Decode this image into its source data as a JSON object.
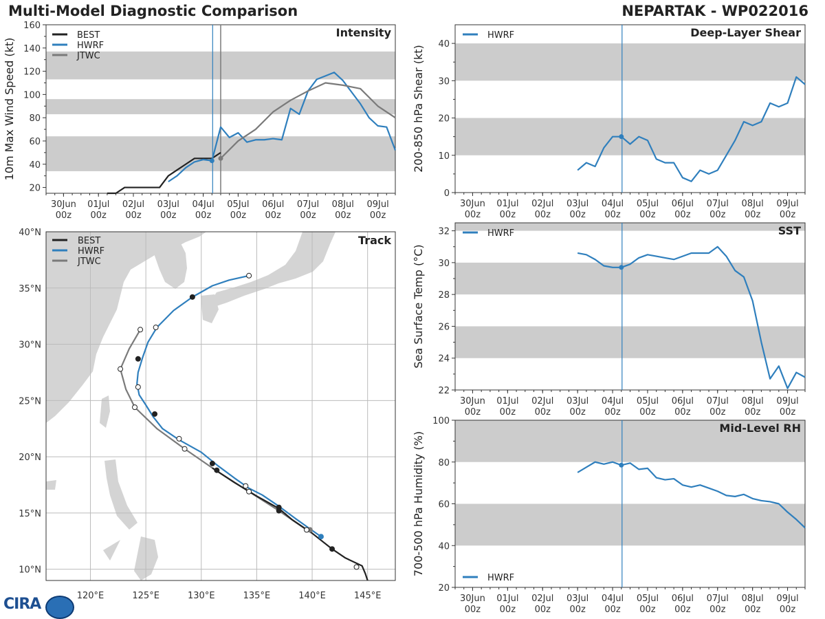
{
  "header": {
    "title": "Multi-Model Diagnostic Comparison",
    "storm": "NEPARTAK - WP022016"
  },
  "logo_text": "CIRA",
  "colors": {
    "best": "#222222",
    "hwrf": "#2f7fbd",
    "jtwc": "#7a7a7a",
    "band": "#cccccc",
    "land": "#d4d4d4",
    "grid": "#bbbbbb"
  },
  "time_axis": {
    "start_day": 29.5,
    "end_day": 39.5,
    "ticks": [
      {
        "day": 30,
        "l1": "30Jun",
        "l2": "00z"
      },
      {
        "day": 31,
        "l1": "01Jul",
        "l2": "00z"
      },
      {
        "day": 32,
        "l1": "02Jul",
        "l2": "00z"
      },
      {
        "day": 33,
        "l1": "03Jul",
        "l2": "00z"
      },
      {
        "day": 34,
        "l1": "04Jul",
        "l2": "00z"
      },
      {
        "day": 35,
        "l1": "05Jul",
        "l2": "00z"
      },
      {
        "day": 36,
        "l1": "06Jul",
        "l2": "00z"
      },
      {
        "day": 37,
        "l1": "07Jul",
        "l2": "00z"
      },
      {
        "day": 38,
        "l1": "08Jul",
        "l2": "00z"
      },
      {
        "day": 39,
        "l1": "09Jul",
        "l2": "00z"
      }
    ],
    "current_day": 34.27,
    "jtwc_day": 34.5
  },
  "chart_data": [
    {
      "type": "line",
      "panel": "intensity",
      "title": "Intensity",
      "ylabel": "10m Max Wind Speed (kt)",
      "ylim": [
        15,
        160
      ],
      "yticks": [
        20,
        40,
        60,
        80,
        100,
        120,
        140,
        160
      ],
      "bands": [
        [
          34,
          64
        ],
        [
          83,
          96
        ],
        [
          113,
          137
        ]
      ],
      "legend": [
        "BEST",
        "HWRF",
        "JTWC"
      ],
      "series": [
        {
          "name": "BEST",
          "x": [
            31.25,
            31.5,
            31.75,
            32.0,
            32.25,
            32.5,
            32.75,
            33.0,
            33.25,
            33.5,
            33.75,
            34.0,
            34.25,
            34.5
          ],
          "y": [
            15,
            15,
            20,
            20,
            20,
            20,
            20,
            30,
            35,
            40,
            45,
            45,
            45,
            50
          ]
        },
        {
          "name": "HWRF",
          "x": [
            33.0,
            33.25,
            33.5,
            33.75,
            34.0,
            34.25,
            34.5,
            34.75,
            35.0,
            35.25,
            35.5,
            35.75,
            36.0,
            36.25,
            36.5,
            36.75,
            37.0,
            37.25,
            37.5,
            37.75,
            38.0,
            38.25,
            38.5,
            38.75,
            39.0,
            39.25,
            39.5
          ],
          "y": [
            25,
            30,
            37,
            42,
            44,
            43,
            72,
            63,
            67,
            59,
            61,
            61,
            62,
            61,
            88,
            83,
            103,
            113,
            116,
            119,
            112,
            102,
            92,
            80,
            73,
            72,
            52
          ]
        },
        {
          "name": "JTWC",
          "x": [
            34.5,
            35.0,
            35.5,
            36.0,
            36.5,
            37.0,
            37.5,
            38.0,
            38.5,
            39.0,
            39.5
          ],
          "y": [
            45,
            60,
            70,
            85,
            95,
            103,
            110,
            108,
            105,
            90,
            80
          ]
        }
      ]
    },
    {
      "type": "line",
      "panel": "shear",
      "title": "Deep-Layer Shear",
      "ylabel": "200-850 hPa Shear (kt)",
      "ylim": [
        0,
        45
      ],
      "yticks": [
        0,
        10,
        20,
        30,
        40
      ],
      "bands": [
        [
          10,
          20
        ],
        [
          30,
          40
        ]
      ],
      "legend": [
        "HWRF"
      ],
      "series": [
        {
          "name": "HWRF",
          "x": [
            33.0,
            33.25,
            33.5,
            33.75,
            34.0,
            34.25,
            34.5,
            34.75,
            35.0,
            35.25,
            35.5,
            35.75,
            36.0,
            36.25,
            36.5,
            36.75,
            37.0,
            37.25,
            37.5,
            37.75,
            38.0,
            38.25,
            38.5,
            38.75,
            39.0,
            39.25,
            39.5
          ],
          "y": [
            6,
            8,
            7,
            12,
            15,
            15,
            13,
            15,
            14,
            9,
            8,
            8,
            4,
            3,
            6,
            5,
            6,
            10,
            14,
            19,
            18,
            19,
            24,
            23,
            24,
            31,
            29
          ]
        }
      ]
    },
    {
      "type": "line",
      "panel": "sst",
      "title": "SST",
      "ylabel": "Sea Surface Temp (°C)",
      "ylim": [
        22,
        32.5
      ],
      "yticks": [
        22,
        24,
        26,
        28,
        30,
        32
      ],
      "bands": [
        [
          24,
          26
        ],
        [
          28,
          30
        ],
        [
          32,
          32.5
        ]
      ],
      "legend": [
        "HWRF"
      ],
      "series": [
        {
          "name": "HWRF",
          "x": [
            33.0,
            33.25,
            33.5,
            33.75,
            34.0,
            34.25,
            34.5,
            34.75,
            35.0,
            35.25,
            35.5,
            35.75,
            36.0,
            36.25,
            36.5,
            36.75,
            37.0,
            37.25,
            37.5,
            37.75,
            38.0,
            38.25,
            38.5,
            38.75,
            39.0,
            39.25,
            39.5
          ],
          "y": [
            30.6,
            30.5,
            30.2,
            29.8,
            29.7,
            29.7,
            29.9,
            30.3,
            30.5,
            30.4,
            30.3,
            30.2,
            30.4,
            30.6,
            30.6,
            30.6,
            31.0,
            30.4,
            29.5,
            29.1,
            27.6,
            25.0,
            22.7,
            23.5,
            22.1,
            23.1,
            22.8
          ]
        }
      ]
    },
    {
      "type": "line",
      "panel": "rh",
      "title": "Mid-Level RH",
      "ylabel": "700-500 hPa Humidity (%)",
      "ylim": [
        20,
        100
      ],
      "yticks": [
        20,
        40,
        60,
        80,
        100
      ],
      "bands": [
        [
          40,
          60
        ],
        [
          80,
          100
        ]
      ],
      "legend": [
        "HWRF"
      ],
      "series": [
        {
          "name": "HWRF",
          "x": [
            33.0,
            33.25,
            33.5,
            33.75,
            34.0,
            34.25,
            34.5,
            34.75,
            35.0,
            35.25,
            35.5,
            35.75,
            36.0,
            36.25,
            36.5,
            36.75,
            37.0,
            37.25,
            37.5,
            37.75,
            38.0,
            38.25,
            38.5,
            38.75,
            39.0,
            39.25,
            39.5
          ],
          "y": [
            75,
            77.5,
            80,
            79,
            80,
            78.5,
            79.5,
            76.5,
            77,
            72.5,
            71.5,
            72,
            69,
            68,
            69,
            67.5,
            66,
            64,
            63.5,
            64.5,
            62.5,
            61.5,
            61,
            60,
            56,
            52.5,
            48.5
          ]
        }
      ]
    },
    {
      "type": "scatter",
      "panel": "track",
      "title": "Track",
      "xlim": [
        116,
        147.5
      ],
      "ylim": [
        9,
        40
      ],
      "xticks": [
        {
          "v": 120,
          "label": "120°E"
        },
        {
          "v": 125,
          "label": "125°E"
        },
        {
          "v": 130,
          "label": "130°E"
        },
        {
          "v": 135,
          "label": "135°E"
        },
        {
          "v": 140,
          "label": "140°E"
        },
        {
          "v": 145,
          "label": "145°E"
        }
      ],
      "yticks": [
        {
          "v": 10,
          "label": "10°N"
        },
        {
          "v": 15,
          "label": "15°N"
        },
        {
          "v": 20,
          "label": "20°N"
        },
        {
          "v": 25,
          "label": "25°N"
        },
        {
          "v": 30,
          "label": "30°N"
        },
        {
          "v": 35,
          "label": "35°N"
        },
        {
          "v": 40,
          "label": "40°N"
        }
      ],
      "legend": [
        "BEST",
        "HWRF",
        "JTWC"
      ],
      "series": [
        {
          "name": "BEST",
          "lon": [
            145.0,
            144.8,
            144.5,
            143.0,
            141.8,
            140.0,
            138.2,
            137.0,
            135.0,
            133.0,
            131.3,
            131.0
          ],
          "lat": [
            9.0,
            9.6,
            10.3,
            11.0,
            11.8,
            13.2,
            14.4,
            15.4,
            16.5,
            17.7,
            18.8,
            19.0
          ],
          "markers": [
            {
              "lon": 141.8,
              "lat": 11.8,
              "fill": "filled"
            },
            {
              "lon": 137.0,
              "lat": 15.5,
              "fill": "filled"
            },
            {
              "lon": 131.0,
              "lat": 19.4,
              "fill": "filled"
            },
            {
              "lon": 131.4,
              "lat": 18.8,
              "fill": "filled"
            },
            {
              "lon": 137.0,
              "lat": 15.2,
              "fill": "filled"
            },
            {
              "lon": 144.0,
              "lat": 10.2,
              "fill": "open"
            }
          ]
        },
        {
          "name": "HWRF",
          "lon": [
            140.8,
            139.5,
            138.5,
            137.0,
            135.5,
            134.3,
            133.0,
            131.5,
            130.0,
            128.0,
            126.5,
            125.7,
            125.0,
            124.4,
            124.2,
            124.3,
            124.7,
            125.2,
            126.0,
            127.5,
            129.2,
            131.0,
            132.5,
            134.3
          ],
          "lat": [
            12.9,
            13.8,
            14.5,
            15.6,
            16.6,
            17.2,
            18.1,
            19.2,
            20.4,
            21.5,
            22.5,
            23.5,
            24.6,
            25.5,
            26.5,
            27.5,
            28.8,
            30.2,
            31.5,
            33.0,
            34.2,
            35.2,
            35.7,
            36.1
          ],
          "markers": [
            {
              "lon": 140.8,
              "lat": 12.9,
              "fill": "blue"
            },
            {
              "lon": 125.8,
              "lat": 23.8,
              "fill": "filled"
            },
            {
              "lon": 124.3,
              "lat": 28.7,
              "fill": "filled"
            },
            {
              "lon": 129.2,
              "lat": 34.2,
              "fill": "filled"
            },
            {
              "lon": 124.3,
              "lat": 26.2,
              "fill": "open"
            },
            {
              "lon": 128.0,
              "lat": 21.6,
              "fill": "open"
            },
            {
              "lon": 134.0,
              "lat": 17.4,
              "fill": "open"
            },
            {
              "lon": 125.9,
              "lat": 31.5,
              "fill": "open"
            },
            {
              "lon": 134.3,
              "lat": 36.1,
              "fill": "open"
            }
          ]
        },
        {
          "name": "JTWC",
          "lon": [
            139.8,
            139.5,
            137.0,
            134.3,
            131.3,
            128.5,
            126.0,
            124.0,
            123.2,
            122.7,
            123.5,
            124.5
          ],
          "lat": [
            13.5,
            13.5,
            15.2,
            16.9,
            18.8,
            20.7,
            22.5,
            24.4,
            26.0,
            27.8,
            29.6,
            31.3
          ],
          "markers": [
            {
              "lon": 139.8,
              "lat": 13.5,
              "fill": "gray"
            },
            {
              "lon": 139.5,
              "lat": 13.5,
              "fill": "open"
            },
            {
              "lon": 134.3,
              "lat": 16.9,
              "fill": "open"
            },
            {
              "lon": 128.5,
              "lat": 20.7,
              "fill": "open"
            },
            {
              "lon": 124.0,
              "lat": 24.4,
              "fill": "open"
            },
            {
              "lon": 122.7,
              "lat": 27.8,
              "fill": "open"
            },
            {
              "lon": 124.5,
              "lat": 31.3,
              "fill": "open"
            }
          ]
        }
      ]
    }
  ]
}
